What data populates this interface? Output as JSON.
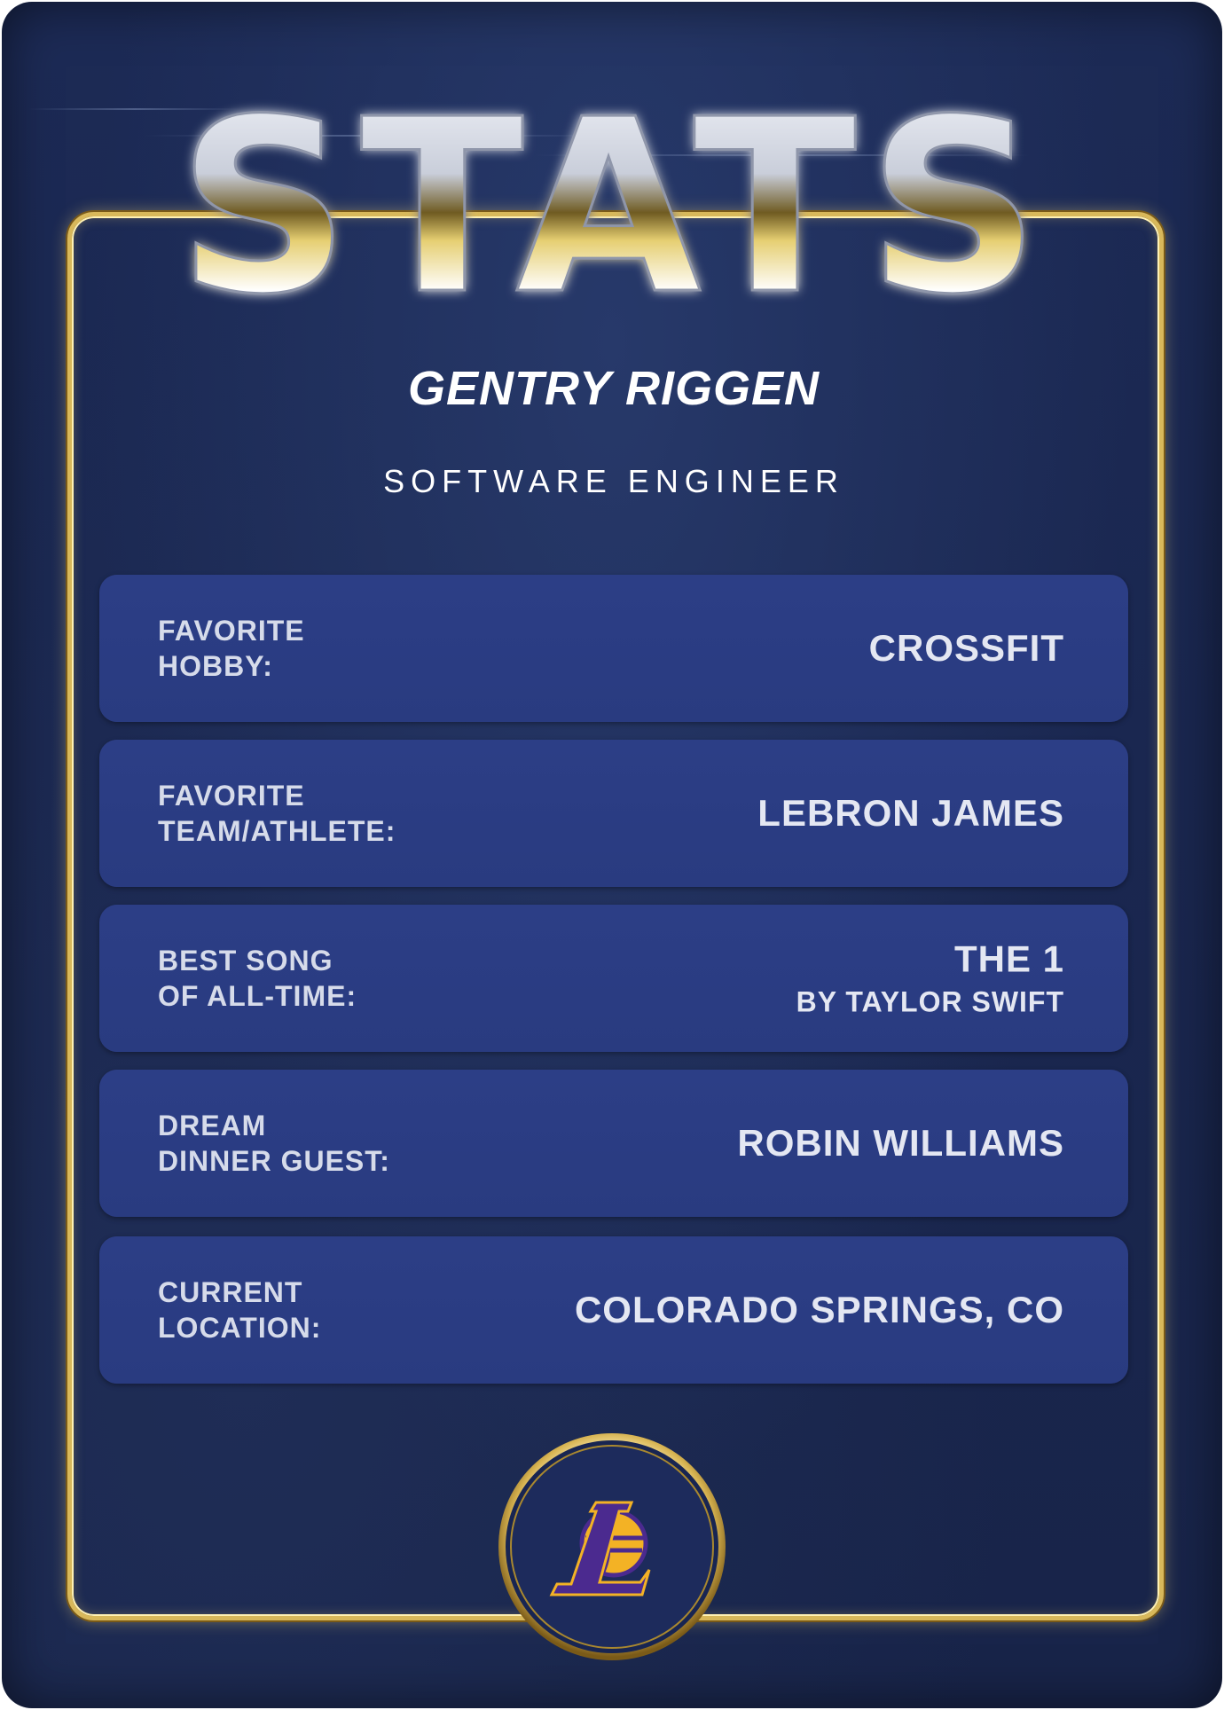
{
  "card": {
    "title": "STATS",
    "name": "GENTRY RIGGEN",
    "role": "SOFTWARE ENGINEER"
  },
  "stats": [
    {
      "label": "FAVORITE\nHOBBY:",
      "value": "CROSSFIT",
      "sub": ""
    },
    {
      "label": "FAVORITE\nTEAM/ATHLETE:",
      "value": "LEBRON JAMES",
      "sub": ""
    },
    {
      "label": "BEST SONG\nOF ALL-TIME:",
      "value": "THE 1",
      "sub": "BY TAYLOR SWIFT"
    },
    {
      "label": "DREAM\nDINNER GUEST:",
      "value": "ROBIN WILLIAMS",
      "sub": ""
    },
    {
      "label": "CURRENT\nLOCATION:",
      "value": "COLORADO SPRINGS, CO",
      "sub": ""
    }
  ],
  "emblem": {
    "icon": "lakers-logo-icon",
    "letter": "L"
  },
  "colors": {
    "card_background": "#1b2851",
    "row_background": "#2b3d84",
    "gold": "#d8b85a",
    "logo_purple": "#4b2a8f",
    "logo_gold": "#f3b225"
  }
}
